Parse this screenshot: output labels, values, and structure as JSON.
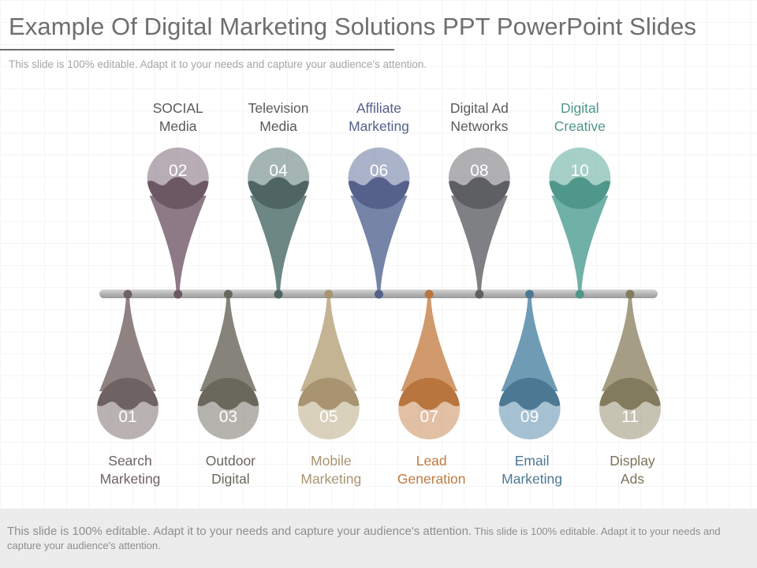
{
  "slide": {
    "title": "Example Of Digital Marketing Solutions PPT PowerPoint Slides",
    "subtitle": "This slide is 100% editable. Adapt it to your needs and capture your audience's attention."
  },
  "footer": {
    "text_large": "This slide is 100% editable. Adapt it to your needs and capture your audience's attention.",
    "text_small": " This slide is 100% editable. Adapt it to your needs and capture your audience's attention."
  },
  "items": [
    {
      "number": "01",
      "label_line1": "Search",
      "label_line2": "Marketing",
      "position": "bottom",
      "color": "#8f8282",
      "dark": "#6e6262",
      "text_color": "#6f6262"
    },
    {
      "number": "02",
      "label_line1": "SOCIAL",
      "label_line2": "Media",
      "position": "top",
      "color": "#8d7a86",
      "dark": "#6b5862",
      "text_color": "#5a5a5a"
    },
    {
      "number": "03",
      "label_line1": "Outdoor",
      "label_line2": "Digital",
      "position": "bottom",
      "color": "#86847a",
      "dark": "#6a675c",
      "text_color": "#6a675c"
    },
    {
      "number": "04",
      "label_line1": "Television",
      "label_line2": "Media",
      "position": "top",
      "color": "#6c8784",
      "dark": "#4f6563",
      "text_color": "#5a5a5a"
    },
    {
      "number": "05",
      "label_line1": "Mobile",
      "label_line2": "Marketing",
      "position": "bottom",
      "color": "#c4b494",
      "dark": "#a89471",
      "text_color": "#a89471"
    },
    {
      "number": "06",
      "label_line1": "Affiliate",
      "label_line2": "Marketing",
      "position": "top",
      "color": "#7684a8",
      "dark": "#55618a",
      "text_color": "#55618a"
    },
    {
      "number": "07",
      "label_line1": "Lead",
      "label_line2": "Generation",
      "position": "bottom",
      "color": "#d19a6c",
      "dark": "#b8753e",
      "text_color": "#c07a40"
    },
    {
      "number": "08",
      "label_line1": "Digital Ad",
      "label_line2": "Networks",
      "position": "top",
      "color": "#7f8084",
      "dark": "#5e5f63",
      "text_color": "#5a5a5a"
    },
    {
      "number": "09",
      "label_line1": "Email",
      "label_line2": "Marketing",
      "position": "bottom",
      "color": "#6f9bb5",
      "dark": "#4c7893",
      "text_color": "#4c7893"
    },
    {
      "number": "10",
      "label_line1": "Digital",
      "label_line2": "Creative",
      "position": "top",
      "color": "#6fb1a6",
      "dark": "#4f978a",
      "text_color": "#4f978a"
    },
    {
      "number": "11",
      "label_line1": "Display",
      "label_line2": "Ads",
      "position": "bottom",
      "color": "#a59e84",
      "dark": "#837b5e",
      "text_color": "#7a7358"
    }
  ]
}
